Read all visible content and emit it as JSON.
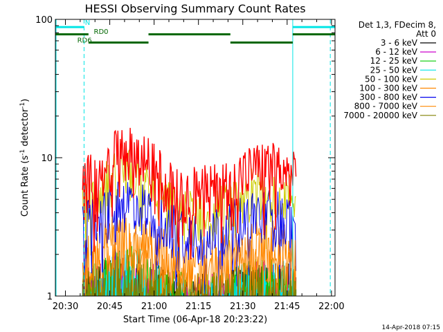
{
  "chart_data": {
    "type": "line",
    "title": "HESSI Observing Summary Count Rates",
    "xlabel": "Start Time (06-Apr-18 20:23:22)",
    "ylabel_main": "Count Rate (s",
    "ylabel_sup1": "-1",
    "ylabel_mid": " detector",
    "ylabel_sup2": "-1",
    "ylabel_end": ")",
    "yscale": "log",
    "ylim": [
      1,
      100
    ],
    "xlim_minutes": [
      -3.4,
      91.2
    ],
    "yticks": [
      {
        "v": 1,
        "label": "1"
      },
      {
        "v": 10,
        "label": "10"
      },
      {
        "v": 100,
        "label": "100"
      }
    ],
    "xticks": [
      {
        "m": 0,
        "label": "20:30"
      },
      {
        "m": 15,
        "label": "20:45"
      },
      {
        "m": 30,
        "label": "21:00"
      },
      {
        "m": 45,
        "label": "21:15"
      },
      {
        "m": 60,
        "label": "21:30"
      },
      {
        "m": 75,
        "label": "21:45"
      },
      {
        "m": 90,
        "label": "22:00"
      }
    ],
    "data_window": {
      "start": 5.8,
      "end": 78.0
    },
    "series": [
      {
        "name": "3 - 6 keV",
        "color": "#000000",
        "peak": 1.5,
        "base": 1.0
      },
      {
        "name": "6 - 12 keV",
        "color": "#cc00cc",
        "peak": 1.5,
        "base": 1.0
      },
      {
        "name": "12 - 25 keV",
        "color": "#00cc00",
        "peak": 1.6,
        "base": 1.0
      },
      {
        "name": "25 - 50 keV",
        "color": "#00e5e5",
        "peak": 1.6,
        "base": 1.0
      },
      {
        "name": "50 - 100 keV",
        "color": "#cccc00",
        "peak": 8.0,
        "base": 4.0
      },
      {
        "name": "100 - 300 keV",
        "color": "#ff8800",
        "peak": 3.0,
        "base": 1.8
      },
      {
        "name": "300 - 800 keV",
        "color": "#0000ee",
        "peak": 5.0,
        "base": 3.0
      },
      {
        "name": "800 - 7000 keV",
        "color": "#ff8800",
        "peak": 2.5,
        "base": 1.5
      },
      {
        "name": "7000 - 20000 keV",
        "color": "#808000",
        "peak": 1.4,
        "base": 1.0
      }
    ],
    "top_series": {
      "color": "#ff0000",
      "peak": 11.5,
      "base": 6.0,
      "peak2": 8.5
    },
    "attenuator_bars": [
      {
        "label": "N",
        "color": "#00e5e5",
        "y": 88,
        "segments": [
          [
            -3.4,
            6.3
          ],
          [
            76.9,
            91.2
          ]
        ]
      },
      {
        "label": "RD0",
        "color": "#006600",
        "y": 78,
        "segments": [
          [
            -3.4,
            7.8
          ],
          [
            28.1,
            55.8
          ],
          [
            76.9,
            91.2
          ]
        ]
      },
      {
        "label": "RD6",
        "color": "#006600",
        "y": 68,
        "segments": [
          [
            7.8,
            28.1
          ],
          [
            55.8,
            76.9
          ]
        ]
      }
    ],
    "vlines_solid": [
      76.9
    ],
    "vlines_dashed": [
      6.3,
      89.6
    ],
    "legend": {
      "header1": "Det 1,3, FDecim 8,",
      "header2": "Att 0",
      "placement": "right"
    },
    "timestamp": "14-Apr-2018 07:15"
  }
}
